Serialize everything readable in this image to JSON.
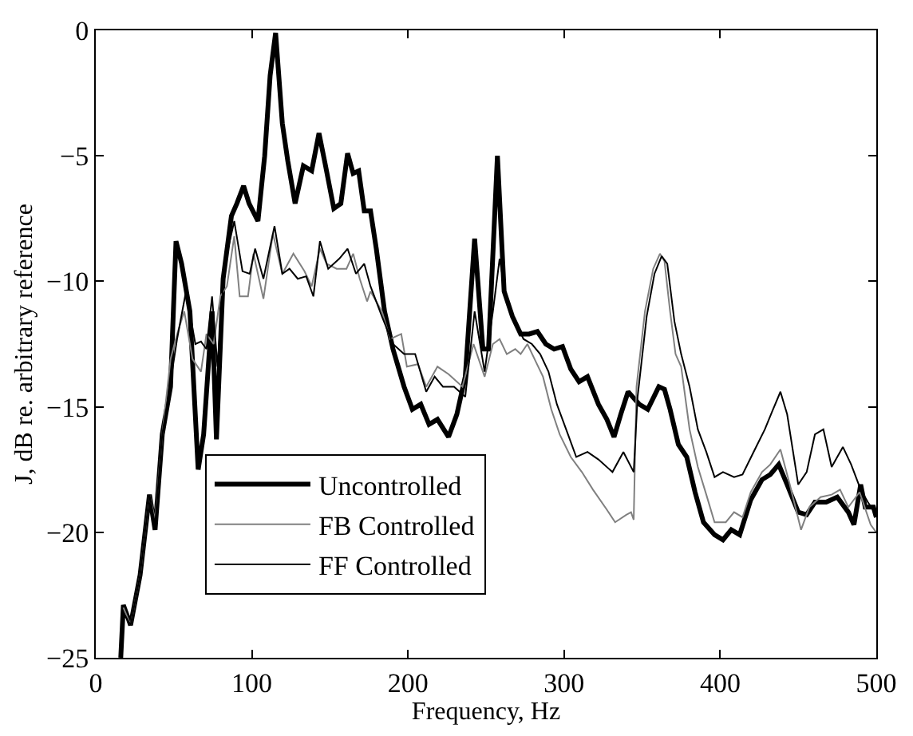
{
  "chart_data": {
    "type": "line",
    "xlabel": "Frequency, Hz",
    "ylabel": "J, dB re. arbitrary reference",
    "xlim": [
      0,
      500
    ],
    "xticks": [
      0,
      100,
      200,
      300,
      400,
      500
    ],
    "ylim": [
      -25,
      0
    ],
    "yticks": [
      -25,
      -20,
      -15,
      -10,
      -5,
      0
    ],
    "grid": false,
    "legend": "bottom",
    "marker": "none",
    "line_style": "solid",
    "series": [
      {
        "name": "Uncontrolled",
        "color": "#000000",
        "x": [
          16,
          17.7,
          22.3,
          28.4,
          34.4,
          38,
          42.6,
          47.9,
          51.4,
          55,
          60.3,
          65.6,
          69.1,
          74.5,
          77.3,
          81.6,
          86.9,
          90.4,
          94.7,
          98.2,
          103.9,
          108.2,
          111.7,
          115.2,
          119.5,
          123,
          127.7,
          133,
          138.3,
          143,
          147.2,
          152.5,
          157,
          161.3,
          164.9,
          168.4,
          172,
          176,
          179.7,
          185,
          190.4,
          197.5,
          202.8,
          208.2,
          213.5,
          218.9,
          226,
          231.3,
          236.7,
          242.7,
          248,
          251.6,
          257.3,
          261.6,
          266.9,
          272.2,
          277.6,
          282.9,
          288.3,
          293.6,
          299,
          304.3,
          309.6,
          315,
          322,
          327.4,
          332,
          336.3,
          341,
          348.2,
          353.6,
          360.7,
          364.3,
          367.9,
          373.2,
          378.6,
          383.9,
          389.3,
          396.4,
          401.8,
          407.1,
          412.5,
          419.6,
          426.8,
          432.1,
          437.5,
          442.9,
          450,
          455.4,
          460.7,
          467.9,
          475,
          482.1,
          485.7,
          490,
          492.9,
          498.2,
          500
        ],
        "values": [
          -25,
          -22.9,
          -23.7,
          -21.7,
          -18.5,
          -19.9,
          -16.1,
          -14.2,
          -8.4,
          -9.3,
          -11.2,
          -17.5,
          -16.1,
          -11.2,
          -16.3,
          -9.9,
          -7.4,
          -6.9,
          -6.2,
          -6.9,
          -7.6,
          -5,
          -1.8,
          -0.1,
          -3.7,
          -5.2,
          -6.9,
          -5.4,
          -5.6,
          -4.1,
          -5.4,
          -7.1,
          -6.9,
          -4.9,
          -5.7,
          -5.6,
          -7.2,
          -7.2,
          -8.7,
          -11.2,
          -12.7,
          -14.2,
          -15.1,
          -14.9,
          -15.7,
          -15.5,
          -16.2,
          -15.3,
          -13.8,
          -8.3,
          -12.7,
          -12.7,
          -5,
          -10.4,
          -11.4,
          -12.1,
          -12.1,
          -12,
          -12.5,
          -12.7,
          -12.6,
          -13.5,
          -14,
          -13.8,
          -14.9,
          -15.5,
          -16.2,
          -15.3,
          -14.4,
          -14.9,
          -15.1,
          -14.2,
          -14.3,
          -15.1,
          -16.5,
          -17,
          -18.4,
          -19.6,
          -20.1,
          -20.3,
          -19.9,
          -20.1,
          -18.7,
          -17.9,
          -17.7,
          -17.3,
          -18.1,
          -19.2,
          -19.3,
          -18.8,
          -18.8,
          -18.6,
          -19.2,
          -19.7,
          -18.1,
          -19,
          -19,
          -19.4
        ]
      },
      {
        "name": "FB Controlled",
        "color": "#808080",
        "x": [
          17.7,
          22.3,
          28.4,
          34.4,
          38,
          42.6,
          47.9,
          52.1,
          56.7,
          62,
          67.4,
          70.9,
          75.5,
          79.8,
          84,
          88.7,
          92.2,
          97.5,
          101,
          107.4,
          113.5,
          119.5,
          126.6,
          133.7,
          138.3,
          143.6,
          147.9,
          154.3,
          160.6,
          164.9,
          169.1,
          173.8,
          176,
          183.3,
          188.6,
          195.7,
          199.3,
          206.4,
          211.7,
          218.9,
          226,
          234.9,
          242,
          249.1,
          254.4,
          258.7,
          263.3,
          268.7,
          272.2,
          276.5,
          281.1,
          286.5,
          291.8,
          297.2,
          304.3,
          311.4,
          318.5,
          327.4,
          332.7,
          339.9,
          342.9,
          344.6,
          346.4,
          351.8,
          357.1,
          361.4,
          364.3,
          367.9,
          371.4,
          375,
          380.4,
          385.7,
          391.1,
          396.4,
          403.6,
          408.9,
          414.3,
          419.6,
          426.8,
          432.1,
          438.6,
          444.6,
          451.8,
          457.1,
          464.3,
          471.4,
          476.8,
          482.1,
          489.3,
          496.4,
          500
        ],
        "values": [
          -23,
          -23.7,
          -21.7,
          -18.5,
          -19.5,
          -16.1,
          -13.1,
          -12.1,
          -11.2,
          -13.1,
          -13.6,
          -12.1,
          -12.5,
          -10.6,
          -10.2,
          -8.2,
          -10.6,
          -10.6,
          -8.9,
          -10.7,
          -8.1,
          -9.7,
          -8.9,
          -9.6,
          -10.2,
          -8.7,
          -9.3,
          -9.5,
          -9.5,
          -8.9,
          -9.9,
          -10.8,
          -10.4,
          -11.2,
          -12.3,
          -12.1,
          -13.4,
          -13.3,
          -14.2,
          -13.4,
          -13.7,
          -14.2,
          -12.5,
          -13.8,
          -12.5,
          -12.3,
          -12.9,
          -12.7,
          -12.9,
          -12.5,
          -13.1,
          -13.8,
          -15.1,
          -16.1,
          -17,
          -17.6,
          -18.3,
          -19.1,
          -19.6,
          -19.3,
          -19.2,
          -19.5,
          -14.2,
          -11.2,
          -9.5,
          -8.9,
          -9.2,
          -11.2,
          -12.9,
          -13.4,
          -15.9,
          -17.4,
          -18.5,
          -19.6,
          -19.6,
          -19.2,
          -19.4,
          -18.4,
          -17.6,
          -17.3,
          -16.7,
          -18.1,
          -19.9,
          -19,
          -18.6,
          -18.5,
          -18.3,
          -19,
          -18.4,
          -19.7,
          -20
        ]
      },
      {
        "name": "FF Controlled",
        "color": "#000000",
        "x": [
          17.7,
          22.3,
          28.4,
          34.4,
          38,
          42.6,
          47.9,
          52.1,
          57.8,
          63.8,
          67.4,
          70.9,
          74.5,
          78,
          82.6,
          88.7,
          94,
          98.6,
          102.1,
          107.4,
          114.5,
          119.5,
          124.1,
          129.4,
          134.8,
          139.4,
          143.6,
          148.9,
          156,
          161.3,
          166.7,
          172,
          176,
          183.3,
          190.4,
          197.5,
          204.6,
          211.7,
          217.1,
          222.4,
          229.5,
          236.7,
          242.7,
          249.1,
          254.4,
          258.7,
          263.3,
          268.7,
          274,
          279.4,
          284.7,
          290,
          295.4,
          302.5,
          307.8,
          315,
          322,
          331,
          338,
          344.6,
          347.1,
          352.9,
          357.9,
          362.5,
          366.1,
          370.7,
          375,
          380.4,
          385.7,
          391.1,
          396.4,
          401.8,
          408.9,
          414.3,
          421.4,
          428.6,
          433.9,
          438.6,
          442.9,
          450,
          455.4,
          460.7,
          466.1,
          471.4,
          478.6,
          483.9,
          490,
          494.6,
          500
        ],
        "values": [
          -23.2,
          -23.7,
          -21.7,
          -18.5,
          -19.7,
          -16.1,
          -14,
          -12.3,
          -10.4,
          -12.5,
          -12.4,
          -12.7,
          -10.6,
          -13.4,
          -9.3,
          -7.6,
          -9.6,
          -9.7,
          -8.7,
          -9.9,
          -7.8,
          -9.7,
          -9.5,
          -9.9,
          -9.8,
          -10.6,
          -8.4,
          -9.5,
          -9.1,
          -8.7,
          -9.7,
          -9.3,
          -10.2,
          -11.4,
          -12.5,
          -12.9,
          -12.9,
          -14.4,
          -13.8,
          -14.2,
          -14.2,
          -14.6,
          -11.2,
          -13.6,
          -11.2,
          -9.1,
          -10.8,
          -11.6,
          -12.3,
          -12.5,
          -12.9,
          -13.6,
          -14.9,
          -16.1,
          -17,
          -16.8,
          -17.1,
          -17.6,
          -16.8,
          -17.6,
          -14.6,
          -11.4,
          -9.7,
          -9,
          -9.3,
          -11.6,
          -12.9,
          -14.2,
          -15.9,
          -16.8,
          -17.8,
          -17.6,
          -17.8,
          -17.7,
          -16.8,
          -15.9,
          -15.1,
          -14.4,
          -15.3,
          -18.1,
          -17.6,
          -16.1,
          -15.9,
          -17.4,
          -16.6,
          -17.3,
          -18.3,
          -18.8,
          -19.3
        ]
      }
    ]
  }
}
